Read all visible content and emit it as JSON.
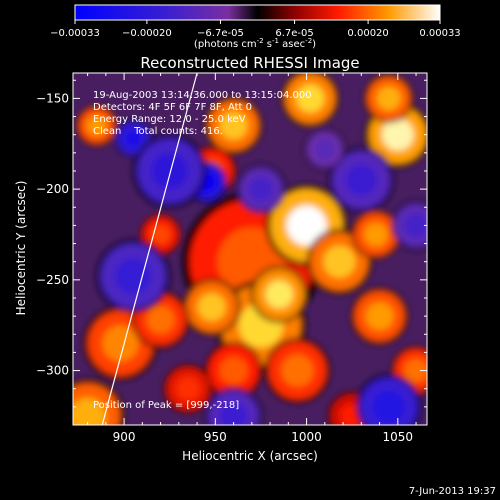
{
  "chart_data": {
    "type": "heatmap",
    "title": "Reconstructed RHESSI Image",
    "xlabel": "Heliocentric X (arcsec)",
    "ylabel": "Heliocentric Y (arcsec)",
    "xlim": [
      872,
      1066
    ],
    "ylim": [
      -330,
      -136
    ],
    "x_ticks": [
      900,
      950,
      1000,
      1050
    ],
    "y_ticks": [
      -300,
      -250,
      -200,
      -150
    ],
    "colorbar": {
      "min": -0.00033,
      "max": 0.00033,
      "ticks": [
        "-0.00033",
        "-0.00020",
        "-6.7e-05",
        "6.7e-05",
        "0.00020",
        "0.00033"
      ],
      "tick_values": [
        -0.00033,
        -0.0002,
        -6.7e-05,
        6.7e-05,
        0.0002,
        0.00033
      ],
      "unit_prefix": "(photons cm",
      "unit_exp1": "-2",
      "unit_mid": " s",
      "unit_exp2": "-1",
      "unit_mid2": " asec",
      "unit_exp3": "-2",
      "unit_suffix": ")"
    },
    "annotations": [
      "19-Aug-2003 13:14:36.000 to 13:15:04.000",
      "Detectors: 4F 5F 6F 7F 8F, Att 0",
      "Energy Range: 12.0 - 25.0 keV",
      "Clean    Total counts: 416."
    ],
    "peak_label": "Position of Peak = [999,-218]",
    "peak": [
      999,
      -218
    ],
    "limb_line": [
      [
        888,
        -330
      ],
      [
        940,
        -136
      ]
    ],
    "blobs": [
      {
        "x": 970,
        "y": -240,
        "r": 34,
        "v": 0.55
      },
      {
        "x": 1000,
        "y": -220,
        "r": 20,
        "v": 1.0
      },
      {
        "x": 975,
        "y": -275,
        "r": 22,
        "v": 0.85
      },
      {
        "x": 948,
        "y": -265,
        "r": 14,
        "v": 0.8
      },
      {
        "x": 1018,
        "y": -240,
        "r": 16,
        "v": 0.8
      },
      {
        "x": 1040,
        "y": -270,
        "r": 14,
        "v": 0.7
      },
      {
        "x": 985,
        "y": -258,
        "r": 14,
        "v": 0.9
      },
      {
        "x": 995,
        "y": -300,
        "r": 16,
        "v": 0.6
      },
      {
        "x": 960,
        "y": -300,
        "r": 14,
        "v": 0.55
      },
      {
        "x": 1050,
        "y": -170,
        "r": 16,
        "v": 0.95
      },
      {
        "x": 1002,
        "y": -150,
        "r": 14,
        "v": 0.85
      },
      {
        "x": 1045,
        "y": -150,
        "r": 12,
        "v": 0.75
      },
      {
        "x": 1038,
        "y": -225,
        "r": 12,
        "v": 0.7
      },
      {
        "x": 960,
        "y": -165,
        "r": 14,
        "v": 0.8
      },
      {
        "x": 948,
        "y": -190,
        "r": 12,
        "v": 0.55
      },
      {
        "x": 885,
        "y": -165,
        "r": 10,
        "v": 0.7
      },
      {
        "x": 880,
        "y": -325,
        "r": 18,
        "v": 0.75
      },
      {
        "x": 898,
        "y": -285,
        "r": 18,
        "v": 0.65
      },
      {
        "x": 920,
        "y": -272,
        "r": 14,
        "v": 0.6
      },
      {
        "x": 1060,
        "y": -300,
        "r": 12,
        "v": 0.6
      },
      {
        "x": 920,
        "y": -225,
        "r": 10,
        "v": 0.5
      },
      {
        "x": 935,
        "y": -310,
        "r": 12,
        "v": 0.45
      },
      {
        "x": 1025,
        "y": -325,
        "r": 12,
        "v": 0.4
      },
      {
        "x": 905,
        "y": -172,
        "r": 9,
        "v": -0.75
      },
      {
        "x": 945,
        "y": -196,
        "r": 10,
        "v": -0.9
      },
      {
        "x": 925,
        "y": -190,
        "r": 18,
        "v": -0.6
      },
      {
        "x": 1045,
        "y": -320,
        "r": 16,
        "v": -0.7
      },
      {
        "x": 1030,
        "y": -195,
        "r": 16,
        "v": -0.5
      },
      {
        "x": 905,
        "y": -248,
        "r": 18,
        "v": -0.55
      },
      {
        "x": 975,
        "y": -200,
        "r": 12,
        "v": -0.45
      },
      {
        "x": 960,
        "y": -325,
        "r": 14,
        "v": -0.5
      },
      {
        "x": 1060,
        "y": -220,
        "r": 12,
        "v": -0.45
      },
      {
        "x": 1010,
        "y": -178,
        "r": 10,
        "v": -0.35
      }
    ],
    "base_level": -0.12,
    "grid": false
  },
  "footer": {
    "date": "7-Jun-2013 19:37"
  },
  "colors": {
    "background": "#000000",
    "text": "#ffffff"
  }
}
